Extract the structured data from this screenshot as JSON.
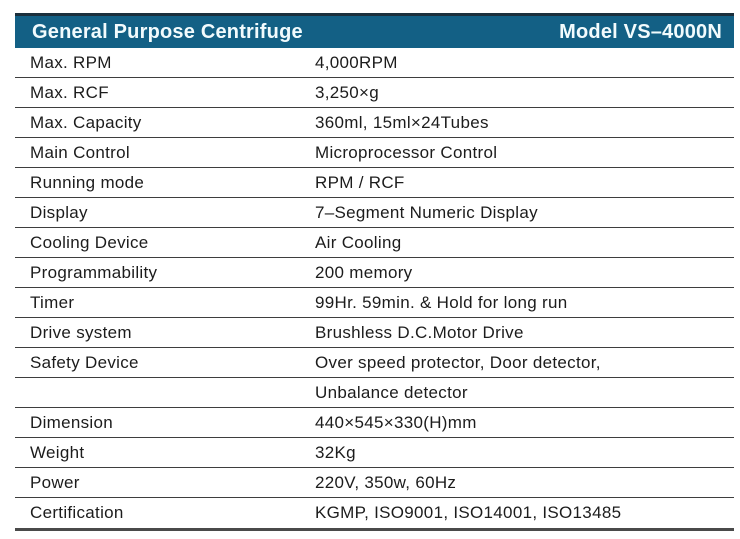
{
  "header": {
    "title": "General Purpose Centrifuge",
    "model": "Model VS–4000N"
  },
  "table": {
    "rows": [
      {
        "label": "Max. RPM",
        "value": "4,000RPM"
      },
      {
        "label": "Max. RCF",
        "value": "3,250×g"
      },
      {
        "label": "Max. Capacity",
        "value": "360ml, 15ml×24Tubes"
      },
      {
        "label": "Main Control",
        "value": "Microprocessor Control"
      },
      {
        "label": "Running mode",
        "value": "RPM / RCF"
      },
      {
        "label": "Display",
        "value": "7–Segment Numeric Display"
      },
      {
        "label": "Cooling Device",
        "value": "Air Cooling"
      },
      {
        "label": "Programmability",
        "value": "200 memory"
      },
      {
        "label": "Timer",
        "value": "99Hr. 59min. & Hold for long run"
      },
      {
        "label": "Drive system",
        "value": "Brushless D.C.Motor Drive"
      },
      {
        "label": "Safety Device",
        "value": "Over speed protector, Door detector,"
      },
      {
        "label": "",
        "value": "Unbalance detector"
      },
      {
        "label": "Dimension",
        "value": "440×545×330(H)mm"
      },
      {
        "label": "Weight",
        "value": "32Kg"
      },
      {
        "label": "Power",
        "value": "220V, 350w, 60Hz"
      },
      {
        "label": "Certification",
        "value": "KGMP, ISO9001, ISO14001, ISO13485"
      }
    ]
  },
  "colors": {
    "header_bar": "#136085",
    "header_bar_top_edge": "#1b2f3c",
    "header_text": "#f2fbfd",
    "row_divider": "#3e3e3e",
    "bottom_rule": "#4a4a4a",
    "body_text": "#1c1c1c"
  }
}
